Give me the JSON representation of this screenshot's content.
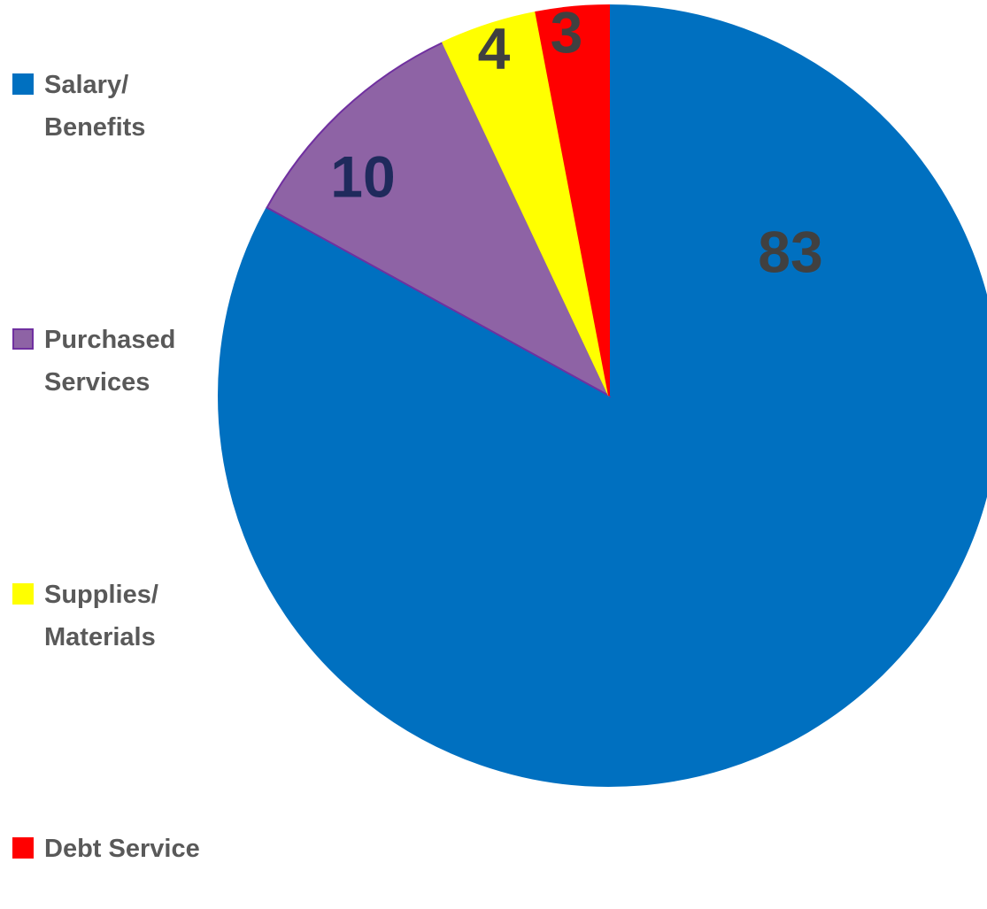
{
  "chart_data": {
    "type": "pie",
    "categories": [
      "Salary/ Benefits",
      "Purchased Services",
      "Supplies/ Materials",
      "Debt Service"
    ],
    "values": [
      83,
      10,
      4,
      3
    ],
    "colors": [
      "#0070c0",
      "#8e63a5",
      "#ffff00",
      "#ff0000"
    ],
    "label_colors": [
      "#404040",
      "#1f2a5c",
      "#404040",
      "#404040"
    ],
    "legend": "left"
  }
}
